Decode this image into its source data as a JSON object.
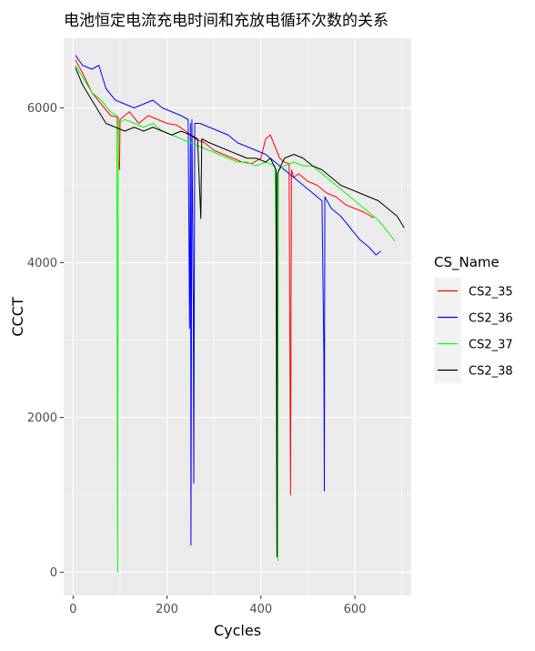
{
  "chart_data": {
    "type": "line",
    "title": "电池恒定电流充电时间和充放电循环次数的关系",
    "xlabel": "Cycles",
    "ylabel": "CCCT",
    "xlim": [
      -20,
      720
    ],
    "ylim": [
      -300,
      6900
    ],
    "x_ticks": [
      0,
      200,
      400,
      600
    ],
    "y_ticks": [
      0,
      2000,
      4000,
      6000
    ],
    "grid": true,
    "legend": {
      "title": "CS_Name",
      "position": "right"
    },
    "series": [
      {
        "name": "CS2_35",
        "color": "#ff0000",
        "points": [
          [
            5,
            6620
          ],
          [
            20,
            6450
          ],
          [
            40,
            6200
          ],
          [
            60,
            6050
          ],
          [
            80,
            5900
          ],
          [
            96,
            5880
          ],
          [
            97,
            5300
          ],
          [
            99,
            5200
          ],
          [
            100,
            5850
          ],
          [
            120,
            5950
          ],
          [
            140,
            5800
          ],
          [
            160,
            5900
          ],
          [
            180,
            5850
          ],
          [
            200,
            5800
          ],
          [
            220,
            5780
          ],
          [
            240,
            5700
          ],
          [
            260,
            5600
          ],
          [
            280,
            5550
          ],
          [
            300,
            5450
          ],
          [
            320,
            5400
          ],
          [
            340,
            5350
          ],
          [
            360,
            5300
          ],
          [
            380,
            5280
          ],
          [
            400,
            5350
          ],
          [
            410,
            5600
          ],
          [
            420,
            5650
          ],
          [
            430,
            5500
          ],
          [
            440,
            5350
          ],
          [
            450,
            5300
          ],
          [
            460,
            5280
          ],
          [
            463,
            1000
          ],
          [
            465,
            5200
          ],
          [
            470,
            5100
          ],
          [
            480,
            5150
          ],
          [
            500,
            5050
          ],
          [
            520,
            5000
          ],
          [
            540,
            4900
          ],
          [
            560,
            4850
          ],
          [
            580,
            4750
          ],
          [
            600,
            4700
          ],
          [
            620,
            4650
          ],
          [
            640,
            4580
          ]
        ]
      },
      {
        "name": "CS2_36",
        "color": "#0000ff",
        "points": [
          [
            5,
            6680
          ],
          [
            20,
            6550
          ],
          [
            40,
            6500
          ],
          [
            55,
            6550
          ],
          [
            70,
            6250
          ],
          [
            90,
            6100
          ],
          [
            110,
            6050
          ],
          [
            130,
            6000
          ],
          [
            150,
            6050
          ],
          [
            170,
            6100
          ],
          [
            190,
            6000
          ],
          [
            210,
            5950
          ],
          [
            230,
            5900
          ],
          [
            245,
            5850
          ],
          [
            248,
            3150
          ],
          [
            250,
            5800
          ],
          [
            251,
            350
          ],
          [
            253,
            5850
          ],
          [
            256,
            3500
          ],
          [
            257,
            1150
          ],
          [
            259,
            5800
          ],
          [
            270,
            5800
          ],
          [
            290,
            5750
          ],
          [
            310,
            5700
          ],
          [
            330,
            5650
          ],
          [
            350,
            5550
          ],
          [
            370,
            5500
          ],
          [
            390,
            5450
          ],
          [
            410,
            5400
          ],
          [
            430,
            5300
          ],
          [
            450,
            5200
          ],
          [
            470,
            5100
          ],
          [
            490,
            5000
          ],
          [
            510,
            4900
          ],
          [
            530,
            4800
          ],
          [
            534,
            2800
          ],
          [
            535,
            1050
          ],
          [
            536,
            4850
          ],
          [
            550,
            4700
          ],
          [
            570,
            4600
          ],
          [
            590,
            4450
          ],
          [
            610,
            4300
          ],
          [
            630,
            4200
          ],
          [
            645,
            4100
          ],
          [
            655,
            4150
          ]
        ]
      },
      {
        "name": "CS2_37",
        "color": "#00ff00",
        "points": [
          [
            5,
            6550
          ],
          [
            20,
            6400
          ],
          [
            40,
            6200
          ],
          [
            60,
            6100
          ],
          [
            80,
            5950
          ],
          [
            93,
            5900
          ],
          [
            94,
            3000
          ],
          [
            95,
            0
          ],
          [
            96,
            4950
          ],
          [
            97,
            5800
          ],
          [
            110,
            5850
          ],
          [
            130,
            5800
          ],
          [
            150,
            5750
          ],
          [
            170,
            5800
          ],
          [
            190,
            5700
          ],
          [
            210,
            5650
          ],
          [
            230,
            5600
          ],
          [
            250,
            5550
          ],
          [
            270,
            5500
          ],
          [
            290,
            5450
          ],
          [
            310,
            5400
          ],
          [
            330,
            5350
          ],
          [
            350,
            5300
          ],
          [
            370,
            5300
          ],
          [
            390,
            5250
          ],
          [
            410,
            5300
          ],
          [
            430,
            5250
          ],
          [
            435,
            2750
          ],
          [
            436,
            150
          ],
          [
            437,
            5200
          ],
          [
            450,
            5250
          ],
          [
            470,
            5300
          ],
          [
            490,
            5250
          ],
          [
            510,
            5250
          ],
          [
            530,
            5150
          ],
          [
            550,
            5050
          ],
          [
            570,
            4950
          ],
          [
            590,
            4850
          ],
          [
            610,
            4750
          ],
          [
            630,
            4650
          ],
          [
            650,
            4550
          ],
          [
            670,
            4400
          ],
          [
            685,
            4280
          ]
        ]
      },
      {
        "name": "CS2_38",
        "color": "#000000",
        "points": [
          [
            5,
            6520
          ],
          [
            20,
            6300
          ],
          [
            40,
            6100
          ],
          [
            55,
            5950
          ],
          [
            70,
            5800
          ],
          [
            90,
            5750
          ],
          [
            110,
            5700
          ],
          [
            130,
            5750
          ],
          [
            150,
            5700
          ],
          [
            170,
            5750
          ],
          [
            190,
            5700
          ],
          [
            210,
            5650
          ],
          [
            230,
            5700
          ],
          [
            250,
            5650
          ],
          [
            265,
            5600
          ],
          [
            272,
            4570
          ],
          [
            274,
            5600
          ],
          [
            290,
            5550
          ],
          [
            310,
            5500
          ],
          [
            330,
            5450
          ],
          [
            350,
            5400
          ],
          [
            370,
            5350
          ],
          [
            390,
            5350
          ],
          [
            410,
            5300
          ],
          [
            420,
            5350
          ],
          [
            432,
            5200
          ],
          [
            433,
            2800
          ],
          [
            434,
            200
          ],
          [
            435,
            5150
          ],
          [
            450,
            5350
          ],
          [
            470,
            5400
          ],
          [
            490,
            5350
          ],
          [
            510,
            5250
          ],
          [
            530,
            5200
          ],
          [
            550,
            5100
          ],
          [
            570,
            5000
          ],
          [
            590,
            4950
          ],
          [
            610,
            4900
          ],
          [
            630,
            4850
          ],
          [
            650,
            4800
          ],
          [
            670,
            4700
          ],
          [
            690,
            4600
          ],
          [
            705,
            4450
          ]
        ]
      }
    ]
  }
}
